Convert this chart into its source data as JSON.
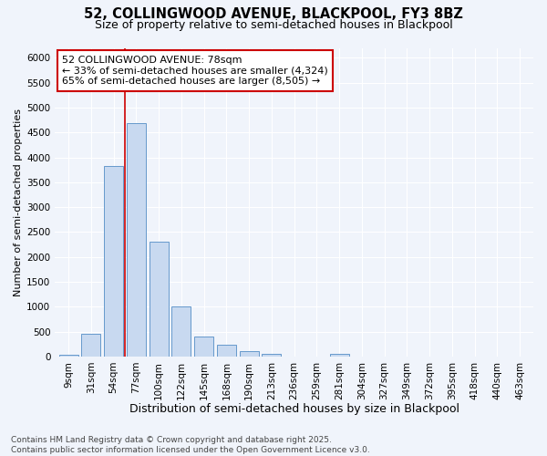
{
  "title1": "52, COLLINGWOOD AVENUE, BLACKPOOL, FY3 8BZ",
  "title2": "Size of property relative to semi-detached houses in Blackpool",
  "xlabel": "Distribution of semi-detached houses by size in Blackpool",
  "ylabel": "Number of semi-detached properties",
  "categories": [
    "9sqm",
    "31sqm",
    "54sqm",
    "77sqm",
    "100sqm",
    "122sqm",
    "145sqm",
    "168sqm",
    "190sqm",
    "213sqm",
    "236sqm",
    "259sqm",
    "281sqm",
    "304sqm",
    "327sqm",
    "349sqm",
    "372sqm",
    "395sqm",
    "418sqm",
    "440sqm",
    "463sqm"
  ],
  "values": [
    30,
    450,
    3820,
    4680,
    2300,
    1000,
    400,
    230,
    100,
    55,
    5,
    0,
    50,
    0,
    0,
    0,
    0,
    0,
    0,
    0,
    0
  ],
  "bar_color": "#c8d9f0",
  "bar_edge_color": "#6699cc",
  "annotation_text": "52 COLLINGWOOD AVENUE: 78sqm\n← 33% of semi-detached houses are smaller (4,324)\n65% of semi-detached houses are larger (8,505) →",
  "annotation_box_color": "white",
  "annotation_box_edge_color": "#cc0000",
  "red_line_x": 2.5,
  "ylim": [
    0,
    6200
  ],
  "yticks": [
    0,
    500,
    1000,
    1500,
    2000,
    2500,
    3000,
    3500,
    4000,
    4500,
    5000,
    5500,
    6000
  ],
  "footnote": "Contains HM Land Registry data © Crown copyright and database right 2025.\nContains public sector information licensed under the Open Government Licence v3.0.",
  "bg_color": "#f0f4fb",
  "plot_bg_color": "#f0f4fb",
  "grid_color": "#ffffff",
  "title1_fontsize": 10.5,
  "title2_fontsize": 9,
  "xlabel_fontsize": 9,
  "ylabel_fontsize": 8,
  "annot_fontsize": 8,
  "tick_fontsize": 7.5,
  "footnote_fontsize": 6.5
}
